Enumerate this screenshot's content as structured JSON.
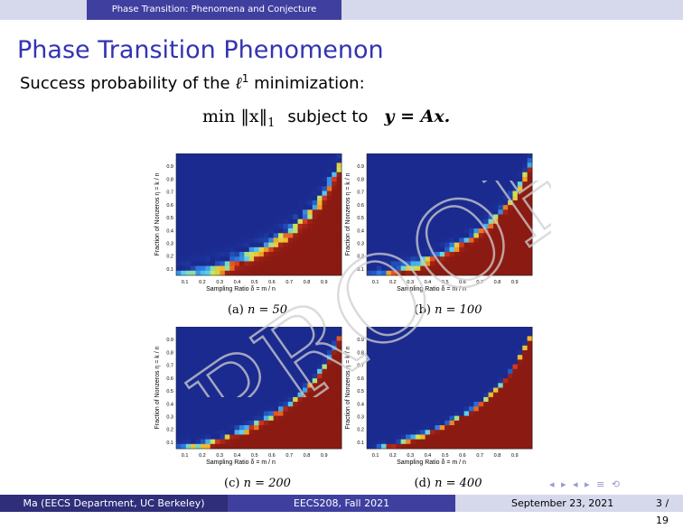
{
  "header": {
    "section": "Phase Transition: Phenomena and Conjecture"
  },
  "slide": {
    "title": "Phase Transition Phenomenon",
    "subtitle_prefix": "Success probability of the ",
    "subtitle_sym": "ℓ",
    "subtitle_sup": "1",
    "subtitle_suffix": " minimization:",
    "formula_min": "min ‖x‖",
    "formula_sub": "1",
    "formula_subject": "subject to",
    "formula_eq": "y = Ax."
  },
  "figure": {
    "xlabel": "Sampling Ratio δ = m / n",
    "ylabel": "Fraction of Nonzeros η = k / n",
    "ticks": [
      "0.1",
      "0.2",
      "0.3",
      "0.4",
      "0.5",
      "0.6",
      "0.7",
      "0.8",
      "0.9"
    ],
    "panels": [
      {
        "caption_prefix": "(a) ",
        "caption_eq": "n = 50"
      },
      {
        "caption_prefix": "(b) ",
        "caption_eq": "n = 100"
      },
      {
        "caption_prefix": "(c) ",
        "caption_eq": "n = 200"
      },
      {
        "caption_prefix": "(d) ",
        "caption_eq": "n = 400"
      }
    ]
  },
  "chart_data": [
    {
      "type": "heatmap",
      "title": "",
      "xlabel": "Sampling Ratio δ = m / n",
      "ylabel": "Fraction of Nonzeros η = k / n",
      "xlim": [
        0.05,
        1.0
      ],
      "ylim": [
        0.05,
        1.0
      ],
      "color_low": "#1b2a8f",
      "color_high": "#8b1a12"
    },
    {
      "type": "heatmap",
      "title": "",
      "xlabel": "Sampling Ratio δ = m / n",
      "ylabel": "Fraction of Nonzeros η = k / n",
      "xlim": [
        0.05,
        1.0
      ],
      "ylim": [
        0.05,
        1.0
      ],
      "color_low": "#1b2a8f",
      "color_high": "#8b1a12"
    },
    {
      "type": "heatmap",
      "title": "",
      "xlabel": "Sampling Ratio δ = m / n",
      "ylabel": "Fraction of Nonzeros η = k / n",
      "xlim": [
        0.05,
        1.0
      ],
      "ylim": [
        0.05,
        1.0
      ],
      "color_low": "#1b2a8f",
      "color_high": "#8b1a12"
    },
    {
      "type": "heatmap",
      "title": "",
      "xlabel": "Sampling Ratio δ = m / n",
      "ylabel": "Fraction of Nonzeros η = k / n",
      "xlim": [
        0.05,
        1.0
      ],
      "ylim": [
        0.05,
        1.0
      ],
      "color_low": "#1b2a8f",
      "color_high": "#8b1a12"
    }
  ],
  "watermark": "PROOF",
  "footer": {
    "author": "Ma (EECS Department, UC Berkeley)",
    "course": "EECS208, Fall 2021",
    "date": "September 23, 2021",
    "page": "3 / 19"
  },
  "nav": {
    "symbols": "◂ ▸ ◂ ▸ ≡ ⟲"
  }
}
